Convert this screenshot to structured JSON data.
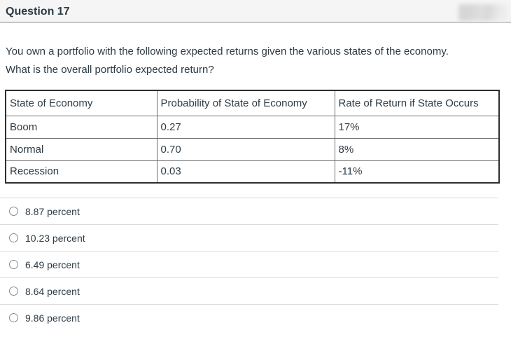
{
  "header": {
    "title": "Question 17"
  },
  "question": {
    "line1": "You own a portfolio with the following expected returns given the various states of the economy.",
    "line2": "What is the overall portfolio expected return?"
  },
  "table": {
    "headers": [
      "State of Economy",
      "Probability of State of Economy",
      "Rate of Return if State Occurs"
    ],
    "rows": [
      [
        "Boom",
        "0.27",
        "17%"
      ],
      [
        "Normal",
        "0.70",
        "8%"
      ],
      [
        "Recession",
        "0.03",
        "-11%"
      ]
    ]
  },
  "options": [
    {
      "label": "8.87 percent"
    },
    {
      "label": "10.23 percent"
    },
    {
      "label": "6.49 percent"
    },
    {
      "label": "8.64 percent"
    },
    {
      "label": "9.86 percent"
    }
  ],
  "colors": {
    "header_bg": "#f5f5f5",
    "header_border": "#c5c5c5",
    "text": "#2d3b45",
    "table_outer": "#2e2e2e",
    "table_inner": "#6e6e6e",
    "divider": "#dcdcdc",
    "radio_border": "#8a8a8a"
  }
}
